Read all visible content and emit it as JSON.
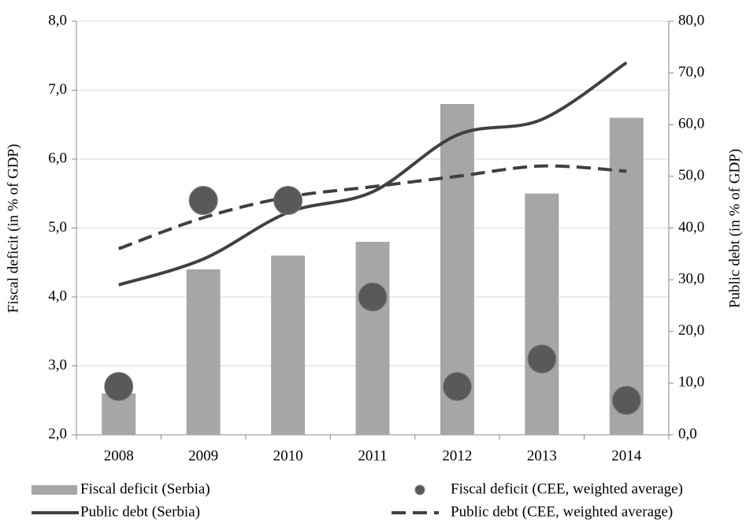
{
  "chart_data": {
    "type": "bar",
    "categories": [
      "2008",
      "2009",
      "2010",
      "2011",
      "2012",
      "2013",
      "2014"
    ],
    "ylabel": "Fiscal deficit (in % of GDP)",
    "y2label": "Public debt (in % of GDP)",
    "ylim": [
      2,
      8
    ],
    "yticks": [
      {
        "value": 2,
        "label": "2,0"
      },
      {
        "value": 3,
        "label": "3,0"
      },
      {
        "value": 4,
        "label": "4,0"
      },
      {
        "value": 5,
        "label": "5,0"
      },
      {
        "value": 6,
        "label": "6,0"
      },
      {
        "value": 7,
        "label": "7,0"
      },
      {
        "value": 8,
        "label": "8,0"
      }
    ],
    "y2lim": [
      0,
      80
    ],
    "y2ticks": [
      {
        "value": 0,
        "label": "0,0"
      },
      {
        "value": 10,
        "label": "10,0"
      },
      {
        "value": 20,
        "label": "20,0"
      },
      {
        "value": 30,
        "label": "30,0"
      },
      {
        "value": 40,
        "label": "40,0"
      },
      {
        "value": 50,
        "label": "50,0"
      },
      {
        "value": 60,
        "label": "60,0"
      },
      {
        "value": 70,
        "label": "70,0"
      },
      {
        "value": 80,
        "label": "80,0"
      }
    ],
    "grid": true,
    "legend": "bottom",
    "series": [
      {
        "name": "Fiscal deficit (Serbia)",
        "type": "bar",
        "color": "#a6a6a6",
        "values": [
          2.6,
          4.4,
          4.6,
          4.8,
          6.8,
          5.5,
          6.6
        ]
      },
      {
        "name": "Fiscal deficit (CEE, weighted average)",
        "type": "scatter",
        "color": "#595959",
        "values": [
          2.7,
          5.4,
          5.4,
          4.0,
          2.7,
          3.1,
          2.5
        ]
      },
      {
        "name": "Public debt (Serbia)",
        "type": "line",
        "color": "#404040",
        "axis": "y2",
        "values": [
          29,
          34,
          43,
          47,
          58,
          61,
          72
        ]
      },
      {
        "name": "Public debt (CEE, weighted average)",
        "type": "line",
        "dashed": true,
        "color": "#404040",
        "axis": "y2",
        "values": [
          36,
          42,
          46,
          48,
          50,
          52,
          51
        ]
      }
    ]
  }
}
